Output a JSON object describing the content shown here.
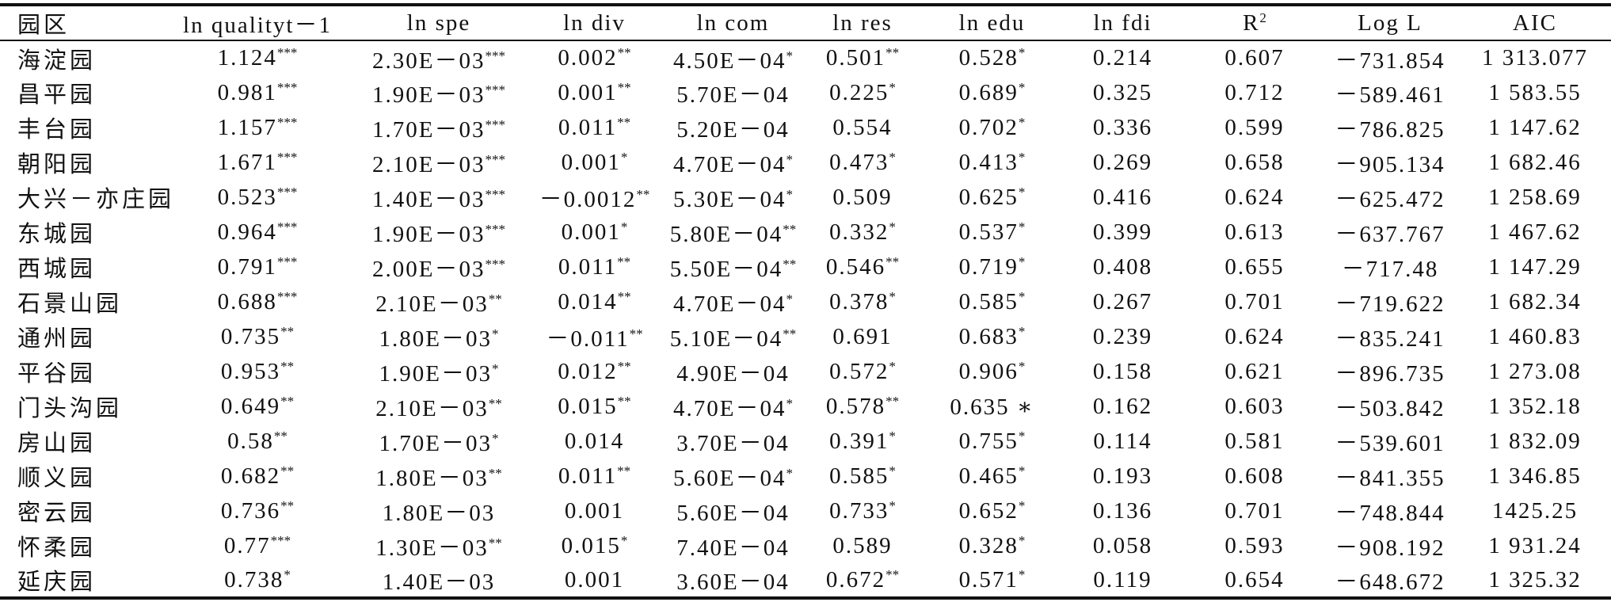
{
  "table": {
    "header": [
      "园区",
      "ln qualityt－1",
      "ln spe",
      "ln div",
      "ln com",
      "ln res",
      "ln edu",
      "ln fdi",
      {
        "t": "R",
        "sup": "2"
      },
      "Log L",
      "AIC"
    ],
    "rows": [
      [
        "海淀园",
        {
          "v": "1.124",
          "s": "***"
        },
        {
          "v": "2.30E－03",
          "s": "***"
        },
        {
          "v": "0.002",
          "s": "**"
        },
        {
          "v": "4.50E－04",
          "s": "*"
        },
        {
          "v": "0.501",
          "s": "**"
        },
        {
          "v": "0.528",
          "s": "*"
        },
        {
          "v": "0.214"
        },
        {
          "v": "0.607"
        },
        {
          "v": "－731.854"
        },
        {
          "v": "1 313.077"
        }
      ],
      [
        "昌平园",
        {
          "v": "0.981",
          "s": "***"
        },
        {
          "v": "1.90E－03",
          "s": "***"
        },
        {
          "v": "0.001",
          "s": "**"
        },
        {
          "v": "5.70E－04"
        },
        {
          "v": "0.225",
          "s": "*"
        },
        {
          "v": "0.689",
          "s": "*"
        },
        {
          "v": "0.325"
        },
        {
          "v": "0.712"
        },
        {
          "v": "－589.461"
        },
        {
          "v": "1 583.55"
        }
      ],
      [
        "丰台园",
        {
          "v": "1.157",
          "s": "***"
        },
        {
          "v": "1.70E－03",
          "s": "***"
        },
        {
          "v": "0.011",
          "s": "**"
        },
        {
          "v": "5.20E－04"
        },
        {
          "v": "0.554"
        },
        {
          "v": "0.702",
          "s": "*"
        },
        {
          "v": "0.336"
        },
        {
          "v": "0.599"
        },
        {
          "v": "－786.825"
        },
        {
          "v": "1 147.62"
        }
      ],
      [
        "朝阳园",
        {
          "v": "1.671",
          "s": "***"
        },
        {
          "v": "2.10E－03",
          "s": "***"
        },
        {
          "v": "0.001",
          "s": "*"
        },
        {
          "v": "4.70E－04",
          "s": "*"
        },
        {
          "v": "0.473",
          "s": "*"
        },
        {
          "v": "0.413",
          "s": "*"
        },
        {
          "v": "0.269"
        },
        {
          "v": "0.658"
        },
        {
          "v": "－905.134"
        },
        {
          "v": "1 682.46"
        }
      ],
      [
        "大兴－亦庄园",
        {
          "v": "0.523",
          "s": "***"
        },
        {
          "v": "1.40E－03",
          "s": "***"
        },
        {
          "v": "－0.0012",
          "s": "**"
        },
        {
          "v": "5.30E－04",
          "s": "*"
        },
        {
          "v": "0.509"
        },
        {
          "v": "0.625",
          "s": "*"
        },
        {
          "v": "0.416"
        },
        {
          "v": "0.624"
        },
        {
          "v": "－625.472"
        },
        {
          "v": "1 258.69"
        }
      ],
      [
        "东城园",
        {
          "v": "0.964",
          "s": "***"
        },
        {
          "v": "1.90E－03",
          "s": "***"
        },
        {
          "v": "0.001",
          "s": "*"
        },
        {
          "v": "5.80E－04",
          "s": "**"
        },
        {
          "v": "0.332",
          "s": "*"
        },
        {
          "v": "0.537",
          "s": "*"
        },
        {
          "v": "0.399"
        },
        {
          "v": "0.613"
        },
        {
          "v": "－637.767"
        },
        {
          "v": "1 467.62"
        }
      ],
      [
        "西城园",
        {
          "v": "0.791",
          "s": "***"
        },
        {
          "v": "2.00E－03",
          "s": "***"
        },
        {
          "v": "0.011",
          "s": "**"
        },
        {
          "v": "5.50E－04",
          "s": "**"
        },
        {
          "v": "0.546",
          "s": "**"
        },
        {
          "v": "0.719",
          "s": "*"
        },
        {
          "v": "0.408"
        },
        {
          "v": "0.655"
        },
        {
          "v": "－717.48"
        },
        {
          "v": "1 147.29"
        }
      ],
      [
        "石景山园",
        {
          "v": "0.688",
          "s": "***"
        },
        {
          "v": "2.10E－03",
          "s": "**"
        },
        {
          "v": "0.014",
          "s": "**"
        },
        {
          "v": "4.70E－04",
          "s": "*"
        },
        {
          "v": "0.378",
          "s": "*"
        },
        {
          "v": "0.585",
          "s": "*"
        },
        {
          "v": "0.267"
        },
        {
          "v": "0.701"
        },
        {
          "v": "－719.622"
        },
        {
          "v": "1 682.34"
        }
      ],
      [
        "通州园",
        {
          "v": "0.735",
          "s": "**"
        },
        {
          "v": "1.80E－03",
          "s": "*"
        },
        {
          "v": "－0.011",
          "s": "**"
        },
        {
          "v": "5.10E－04",
          "s": "**"
        },
        {
          "v": "0.691"
        },
        {
          "v": "0.683",
          "s": "*"
        },
        {
          "v": "0.239"
        },
        {
          "v": "0.624"
        },
        {
          "v": "－835.241"
        },
        {
          "v": "1 460.83"
        }
      ],
      [
        "平谷园",
        {
          "v": "0.953",
          "s": "**"
        },
        {
          "v": "1.90E－03",
          "s": "*"
        },
        {
          "v": "0.012",
          "s": "**"
        },
        {
          "v": "4.90E－04"
        },
        {
          "v": "0.572",
          "s": "*"
        },
        {
          "v": "0.906",
          "s": "*"
        },
        {
          "v": "0.158"
        },
        {
          "v": "0.621"
        },
        {
          "v": "－896.735"
        },
        {
          "v": "1 273.08"
        }
      ],
      [
        "门头沟园",
        {
          "v": "0.649",
          "s": "**"
        },
        {
          "v": "2.10E－03",
          "s": "**"
        },
        {
          "v": "0.015",
          "s": "**"
        },
        {
          "v": "4.70E－04",
          "s": "*"
        },
        {
          "v": "0.578",
          "s": "**"
        },
        {
          "v": "0.635 ∗"
        },
        {
          "v": "0.162"
        },
        {
          "v": "0.603"
        },
        {
          "v": "－503.842"
        },
        {
          "v": "1 352.18"
        }
      ],
      [
        "房山园",
        {
          "v": "0.58",
          "s": "**"
        },
        {
          "v": "1.70E－03",
          "s": "*"
        },
        {
          "v": "0.014"
        },
        {
          "v": "3.70E－04"
        },
        {
          "v": "0.391",
          "s": "*"
        },
        {
          "v": "0.755",
          "s": "*"
        },
        {
          "v": "0.114"
        },
        {
          "v": "0.581"
        },
        {
          "v": "－539.601"
        },
        {
          "v": "1 832.09"
        }
      ],
      [
        "顺义园",
        {
          "v": "0.682",
          "s": "**"
        },
        {
          "v": "1.80E－03",
          "s": "**"
        },
        {
          "v": "0.011",
          "s": "**"
        },
        {
          "v": "5.60E－04",
          "s": "*"
        },
        {
          "v": "0.585",
          "s": "*"
        },
        {
          "v": "0.465",
          "s": "*"
        },
        {
          "v": "0.193"
        },
        {
          "v": "0.608"
        },
        {
          "v": "－841.355"
        },
        {
          "v": "1 346.85"
        }
      ],
      [
        "密云园",
        {
          "v": "0.736",
          "s": "**"
        },
        {
          "v": "1.80E－03"
        },
        {
          "v": "0.001"
        },
        {
          "v": "5.60E－04"
        },
        {
          "v": "0.733",
          "s": "*"
        },
        {
          "v": "0.652",
          "s": "*"
        },
        {
          "v": "0.136"
        },
        {
          "v": "0.701"
        },
        {
          "v": "－748.844"
        },
        {
          "v": "1425.25"
        }
      ],
      [
        "怀柔园",
        {
          "v": "0.77",
          "s": "***"
        },
        {
          "v": "1.30E－03",
          "s": "**"
        },
        {
          "v": "0.015",
          "s": "*"
        },
        {
          "v": "7.40E－04"
        },
        {
          "v": "0.589"
        },
        {
          "v": "0.328",
          "s": "*"
        },
        {
          "v": "0.058"
        },
        {
          "v": "0.593"
        },
        {
          "v": "－908.192"
        },
        {
          "v": "1 931.24"
        }
      ],
      [
        "延庆园",
        {
          "v": "0.738",
          "s": "*"
        },
        {
          "v": "1.40E－03"
        },
        {
          "v": "0.001"
        },
        {
          "v": "3.60E－04"
        },
        {
          "v": "0.672",
          "s": "**"
        },
        {
          "v": "0.571",
          "s": "*"
        },
        {
          "v": "0.119"
        },
        {
          "v": "0.654"
        },
        {
          "v": "－648.672"
        },
        {
          "v": "1 325.32"
        }
      ]
    ]
  }
}
